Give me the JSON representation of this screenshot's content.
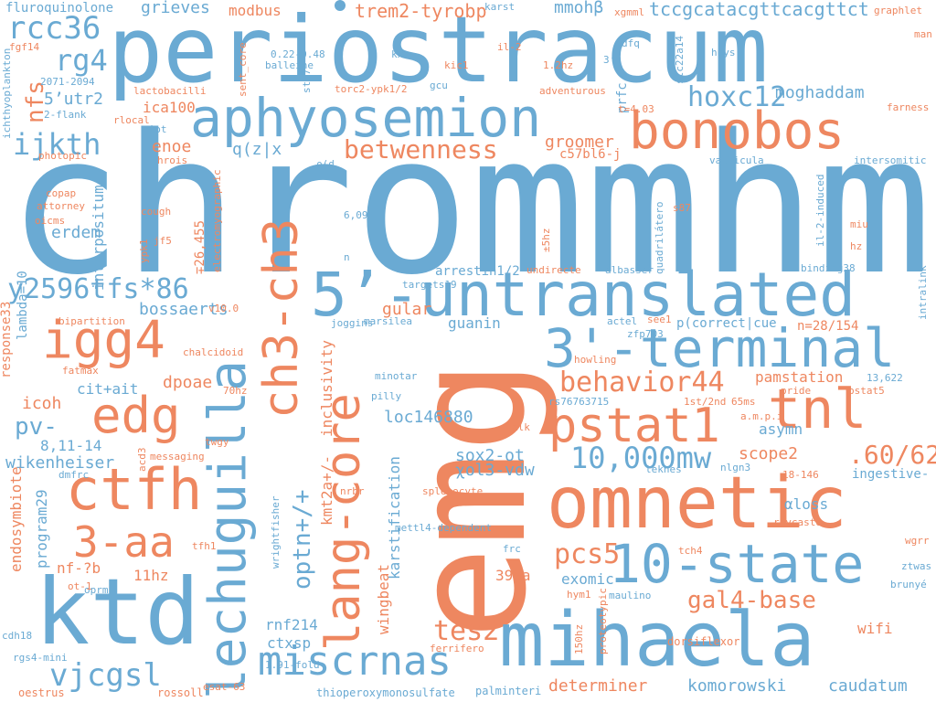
{
  "palette": {
    "blue": "#6aaad3",
    "orange": "#ee8760",
    "background": "#ffffff"
  },
  "words": [
    {
      "text": "chrommhmm",
      "color": "blue"
    },
    {
      "text": "emg",
      "color": "orange"
    },
    {
      "text": "periostracum",
      "color": "blue"
    },
    {
      "text": "omnetic",
      "color": "orange"
    },
    {
      "text": "mihaela",
      "color": "blue"
    },
    {
      "text": "ktd",
      "color": "blue"
    },
    {
      "text": "5’-untranslated",
      "color": "blue"
    },
    {
      "text": "aphyosemion",
      "color": "blue"
    },
    {
      "text": "bonobos",
      "color": "orange"
    },
    {
      "text": "lechuguilla",
      "color": "blue"
    },
    {
      "text": "lang-core",
      "color": "orange"
    },
    {
      "text": "ch3-ch3",
      "color": "orange"
    },
    {
      "text": "3'-terminal",
      "color": "blue"
    },
    {
      "text": "10-state",
      "color": "blue"
    },
    {
      "text": "ctfh",
      "color": "orange"
    },
    {
      "text": "igg4",
      "color": "orange"
    },
    {
      "text": "edg",
      "color": "orange"
    },
    {
      "text": "pstat1",
      "color": "orange"
    },
    {
      "text": "tnl",
      "color": "orange"
    },
    {
      "text": "miscrnas",
      "color": "blue"
    },
    {
      "text": "3-aa",
      "color": "orange"
    },
    {
      "text": "y2596tfs*86",
      "color": "blue"
    },
    {
      "text": "behavior44",
      "color": "orange"
    },
    {
      "text": "10,000mw",
      "color": "blue"
    },
    {
      "text": "betwenness",
      "color": "orange"
    },
    {
      "text": "rcc36",
      "color": "blue"
    },
    {
      "text": "hoxc12",
      "color": "blue"
    },
    {
      "text": "ijkth",
      "color": "blue"
    },
    {
      "text": "rg4",
      "color": "blue"
    },
    {
      "text": "nfs",
      "color": "orange"
    },
    {
      "text": "vjcgsl",
      "color": "blue"
    },
    {
      "text": "pcs5",
      "color": "orange"
    },
    {
      "text": "tes2",
      "color": "orange"
    },
    {
      "text": "gal4-base",
      "color": "orange"
    },
    {
      "text": "optn+/+",
      "color": "blue"
    },
    {
      "text": ".60/62",
      "color": "orange"
    },
    {
      "text": "trem2-tyrobp",
      "color": "orange"
    },
    {
      "text": "tccgcatacgttcacgttct",
      "color": "blue"
    },
    {
      "text": "moghaddam",
      "color": "blue"
    },
    {
      "text": "pv-",
      "color": "blue"
    },
    {
      "text": "komorowski",
      "color": "blue"
    },
    {
      "text": "determiner",
      "color": "orange"
    },
    {
      "text": "caudatum",
      "color": "blue"
    },
    {
      "text": "fluroquinolone",
      "color": "blue"
    },
    {
      "text": "grieves",
      "color": "blue"
    },
    {
      "text": "modbus",
      "color": "orange"
    },
    {
      "text": "5’utr2",
      "color": "blue"
    },
    {
      "text": "ica100",
      "color": "orange"
    },
    {
      "text": "enoe",
      "color": "orange"
    },
    {
      "text": "groomer",
      "color": "orange"
    },
    {
      "text": "q(z|x",
      "color": "blue"
    },
    {
      "text": "mmohβ",
      "color": "blue"
    },
    {
      "text": "c57bl6-j",
      "color": "orange"
    },
    {
      "text": "kmt2a+/-",
      "color": "orange"
    },
    {
      "text": "inclusivity",
      "color": "orange"
    },
    {
      "text": "loc146880",
      "color": "blue"
    },
    {
      "text": "sox2-ot",
      "color": "blue"
    },
    {
      "text": "χol3-vdw",
      "color": "blue"
    },
    {
      "text": "scope2",
      "color": "orange"
    },
    {
      "text": "pamstation",
      "color": "orange"
    },
    {
      "text": "asymn",
      "color": "blue"
    },
    {
      "text": "gular",
      "color": "orange"
    },
    {
      "text": "guanin",
      "color": "blue"
    },
    {
      "text": "bossaerts",
      "color": "blue"
    },
    {
      "text": "erdem",
      "color": "blue"
    },
    {
      "text": "interpositum",
      "color": "blue"
    },
    {
      "text": "dpoae",
      "color": "orange"
    },
    {
      "text": "icoh",
      "color": "orange"
    },
    {
      "text": "cit+ait",
      "color": "blue"
    },
    {
      "text": "wikenheiser",
      "color": "blue"
    },
    {
      "text": "8,11-14",
      "color": "blue"
    },
    {
      "text": "endosymbiote",
      "color": "orange"
    },
    {
      "text": "program29",
      "color": "blue"
    },
    {
      "text": "nf-?b",
      "color": "orange"
    },
    {
      "text": "11hz",
      "color": "orange"
    },
    {
      "text": "rnf214",
      "color": "blue"
    },
    {
      "text": "ctxsp",
      "color": "blue"
    },
    {
      "text": "39aa",
      "color": "orange"
    },
    {
      "text": "exomic",
      "color": "blue"
    },
    {
      "text": "wifi",
      "color": "orange"
    },
    {
      "text": "αloss",
      "color": "blue"
    },
    {
      "text": "ingestive-",
      "color": "blue"
    },
    {
      "text": "karstification",
      "color": "blue"
    },
    {
      "text": "wingbeat",
      "color": "orange"
    },
    {
      "text": "∓26,455",
      "color": "orange"
    },
    {
      "text": "arrestin1/2",
      "color": "blue"
    },
    {
      "text": "p(correct|cue",
      "color": "blue"
    },
    {
      "text": "n=28/154",
      "color": "orange"
    },
    {
      "text": "prfc",
      "color": "blue"
    },
    {
      "text": "response33",
      "color": "orange"
    },
    {
      "text": "lambda=10",
      "color": "blue"
    },
    {
      "text": "rossoll",
      "color": "orange"
    },
    {
      "text": "oestrus",
      "color": "orange"
    },
    {
      "text": "palminteri",
      "color": "blue"
    },
    {
      "text": "thioperoxymonosulfate",
      "color": "blue"
    },
    {
      "text": "ferrifero",
      "color": "orange"
    },
    {
      "text": "dorsiflexor",
      "color": "orange"
    },
    {
      "text": "maulino",
      "color": "blue"
    },
    {
      "text": "1.91-fold",
      "color": "blue"
    },
    {
      "text": "esat-63",
      "color": "orange"
    },
    {
      "text": "oprm1",
      "color": "blue"
    },
    {
      "text": "cdh18",
      "color": "blue"
    },
    {
      "text": "rgs4-mini",
      "color": "blue"
    },
    {
      "text": "ot-1",
      "color": "orange"
    },
    {
      "text": "tfh1",
      "color": "orange"
    },
    {
      "text": "hym1",
      "color": "orange"
    },
    {
      "text": "tch4",
      "color": "orange"
    },
    {
      "text": "frc",
      "color": "blue"
    },
    {
      "text": "mettl4-dependent",
      "color": "blue"
    },
    {
      "text": "splenocyte",
      "color": "orange"
    },
    {
      "text": "nrbr",
      "color": "orange"
    },
    {
      "text": "wrightfisher",
      "color": "blue"
    },
    {
      "text": "leknes",
      "color": "blue"
    },
    {
      "text": "nlgn3",
      "color": "blue"
    },
    {
      "text": "18-146",
      "color": "orange"
    },
    {
      "text": "raycaste",
      "color": "orange"
    },
    {
      "text": "wgrr",
      "color": "orange"
    },
    {
      "text": "ztwas",
      "color": "blue"
    },
    {
      "text": "brunyé",
      "color": "blue"
    },
    {
      "text": "proteotypic",
      "color": "orange"
    },
    {
      "text": "150hz",
      "color": "orange"
    },
    {
      "text": "karst",
      "color": "blue"
    },
    {
      "text": "xgmml",
      "color": "orange"
    },
    {
      "text": "graphlet",
      "color": "orange"
    },
    {
      "text": "man",
      "color": "orange"
    },
    {
      "text": "fgf14",
      "color": "orange"
    },
    {
      "text": "2071-2094",
      "color": "blue"
    },
    {
      "text": "2-flank",
      "color": "blue"
    },
    {
      "text": "ichthyoplankton",
      "color": "blue"
    },
    {
      "text": "photopic",
      "color": "orange"
    },
    {
      "text": "copap",
      "color": "orange"
    },
    {
      "text": "attorney",
      "color": "orange"
    },
    {
      "text": "oicms",
      "color": "orange"
    },
    {
      "text": "0.22-0.48",
      "color": "blue"
    },
    {
      "text": "balleine",
      "color": "blue"
    },
    {
      "text": "sent_core",
      "color": "orange"
    },
    {
      "text": "st17",
      "color": "blue"
    },
    {
      "text": "kxx",
      "color": "blue"
    },
    {
      "text": "kic1",
      "color": "orange"
    },
    {
      "text": "il-2",
      "color": "orange"
    },
    {
      "text": "1.2hz",
      "color": "orange"
    },
    {
      "text": "3’-",
      "color": "blue"
    },
    {
      "text": "dfq",
      "color": "blue"
    },
    {
      "text": "slc22a14",
      "color": "blue"
    },
    {
      "text": "huys",
      "color": "blue"
    },
    {
      "text": "gcu",
      "color": "blue"
    },
    {
      "text": "torc2-ypk1/2",
      "color": "orange"
    },
    {
      "text": "adventurous",
      "color": "orange"
    },
    {
      "text": "t=4.03",
      "color": "orange"
    },
    {
      "text": "farness",
      "color": "orange"
    },
    {
      "text": "lactobacilli",
      "color": "orange"
    },
    {
      "text": "rlocal",
      "color": "orange"
    },
    {
      "text": "viot",
      "color": "blue"
    },
    {
      "text": "hrois",
      "color": "orange"
    },
    {
      "text": "ρ(d",
      "color": "blue"
    },
    {
      "text": "vallicula",
      "color": "blue"
    },
    {
      "text": "intersomitic",
      "color": "blue"
    },
    {
      "text": "electromyographic",
      "color": "orange"
    },
    {
      "text": "cough",
      "color": "orange"
    },
    {
      "text": "6,091",
      "color": "blue"
    },
    {
      "text": "s87",
      "color": "orange"
    },
    {
      "text": "miu",
      "color": "orange"
    },
    {
      "text": "il-2-induced",
      "color": "blue"
    },
    {
      "text": "quadrilátero",
      "color": "blue"
    },
    {
      "text": "±5hz",
      "color": "orange"
    },
    {
      "text": "jf5",
      "color": "orange"
    },
    {
      "text": "ypk1",
      "color": "orange"
    },
    {
      "text": "n",
      "color": "blue"
    },
    {
      "text": "targets19",
      "color": "blue"
    },
    {
      "text": "undirecte",
      "color": "orange"
    },
    {
      "text": "albasser",
      "color": "blue"
    },
    {
      "text": "binding38",
      "color": "blue"
    },
    {
      "text": "hz",
      "color": "orange"
    },
    {
      "text": "intralink",
      "color": "blue"
    },
    {
      "text": "v10.0",
      "color": "orange"
    },
    {
      "text": "joggins",
      "color": "blue"
    },
    {
      "text": "marsilea",
      "color": "blue"
    },
    {
      "text": "actel",
      "color": "blue"
    },
    {
      "text": "see1",
      "color": "orange"
    },
    {
      "text": "zfp703",
      "color": "blue"
    },
    {
      "text": "bipartition",
      "color": "orange"
    },
    {
      "text": "chalcidoid",
      "color": "orange"
    },
    {
      "text": "howling",
      "color": "orange"
    },
    {
      "text": "fatmax",
      "color": "orange"
    },
    {
      "text": "minotar",
      "color": "blue"
    },
    {
      "text": "pride",
      "color": "orange"
    },
    {
      "text": "13,622",
      "color": "blue"
    },
    {
      "text": "pstat5",
      "color": "orange"
    },
    {
      "text": "70hz",
      "color": "orange"
    },
    {
      "text": "rs76763715",
      "color": "blue"
    },
    {
      "text": "1st/2nd",
      "color": "orange"
    },
    {
      "text": "65ms",
      "color": "orange"
    },
    {
      "text": "a.m.p.i",
      "color": "orange"
    },
    {
      "text": "pilly",
      "color": "blue"
    },
    {
      "text": "mlk",
      "color": "orange"
    },
    {
      "text": "twgy",
      "color": "orange"
    },
    {
      "text": "messaging",
      "color": "orange"
    },
    {
      "text": "acd3",
      "color": "orange"
    },
    {
      "text": "dmfrc",
      "color": "blue"
    }
  ]
}
